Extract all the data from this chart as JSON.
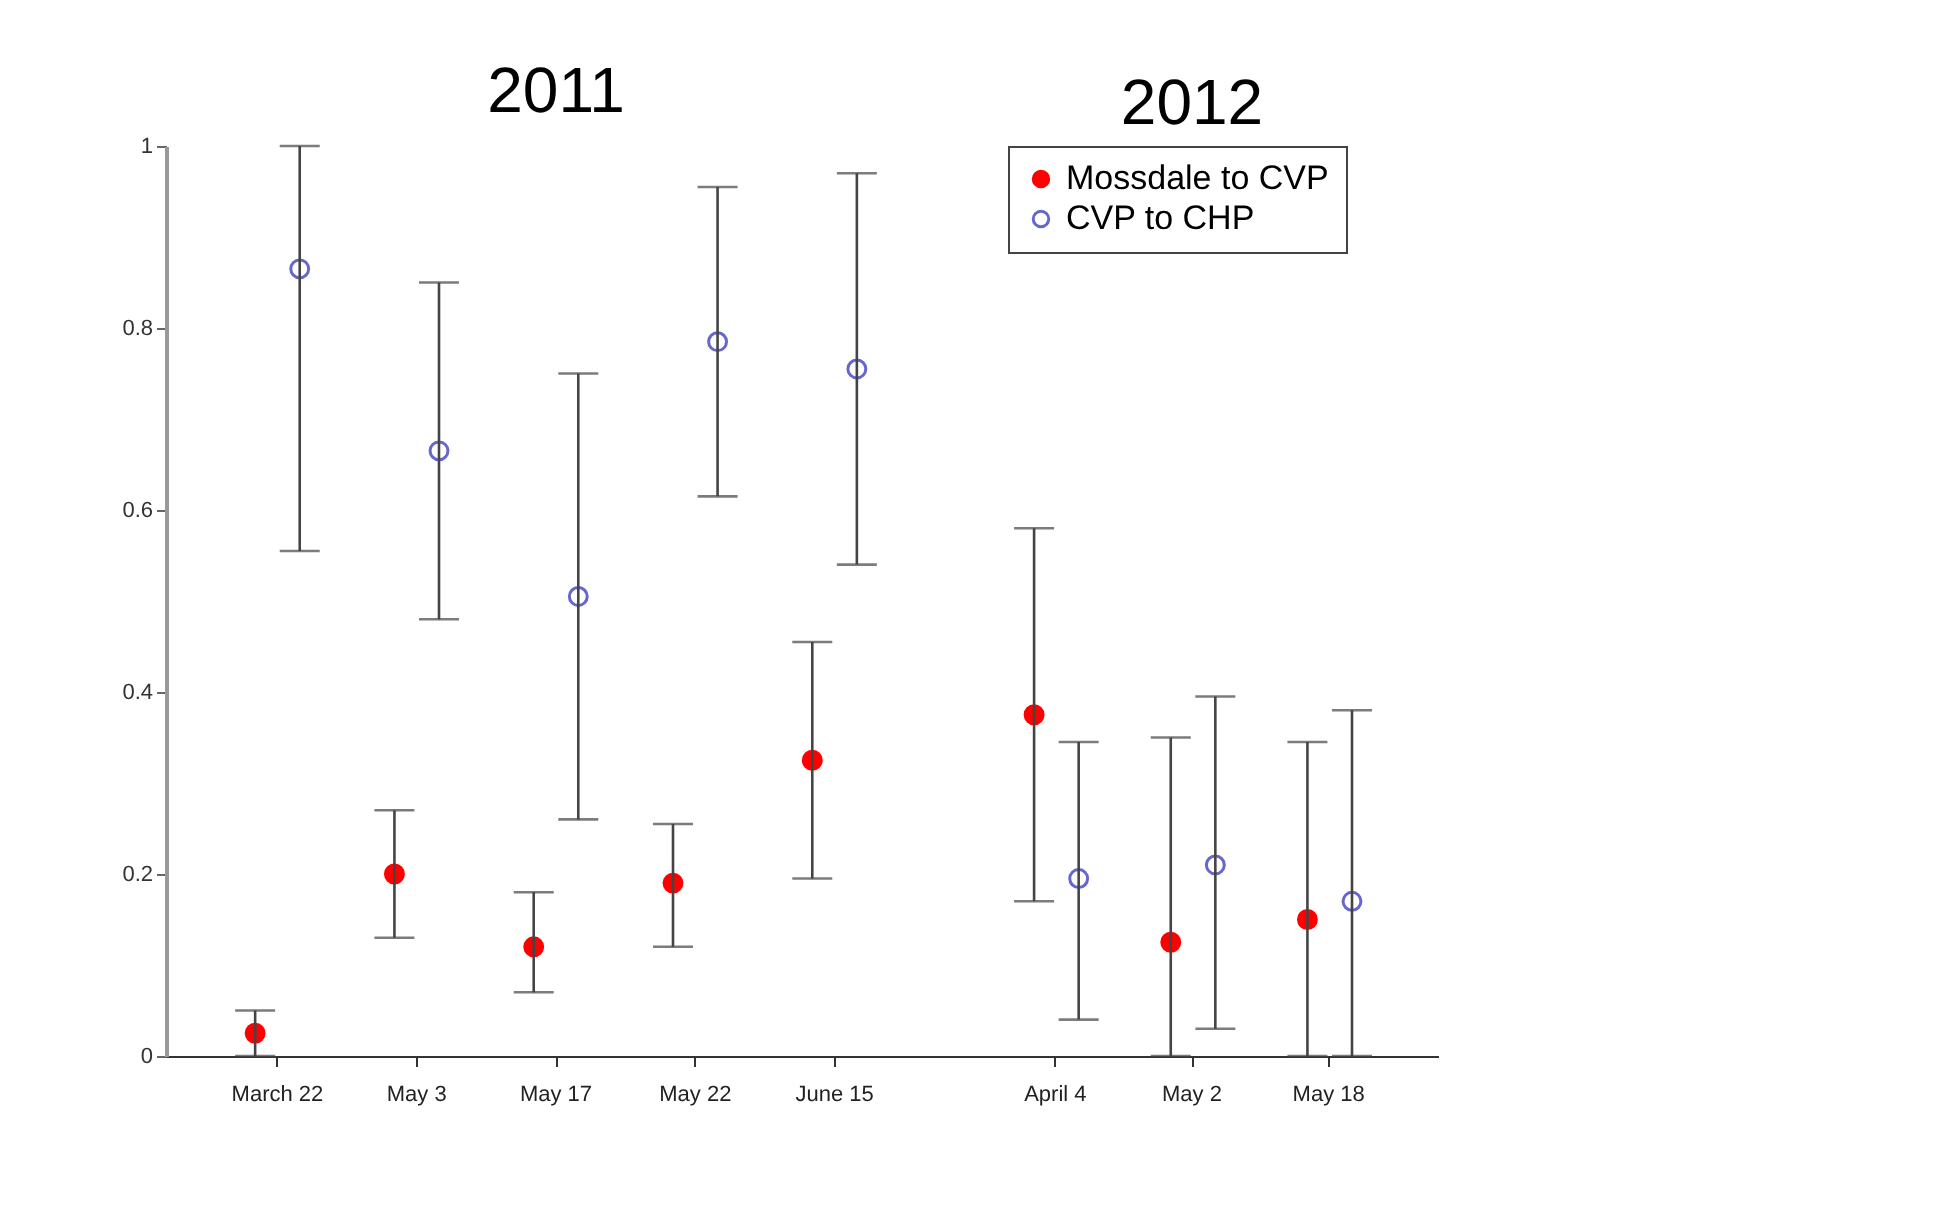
{
  "chart_data": [
    {
      "type": "scatter",
      "title": "2011",
      "categories": [
        "March 22",
        "May 3",
        "May 17",
        "May 22",
        "June 15"
      ],
      "ylim": [
        0,
        1
      ],
      "yticks": [
        0,
        0.2,
        0.4,
        0.6,
        0.8,
        1
      ],
      "marker": "circle",
      "legend": "top right",
      "grid": false,
      "series": [
        {
          "name": "Mossdale to CVP",
          "color": "#ff0000",
          "values": [
            0.025,
            0.2,
            0.12,
            0.19,
            0.325
          ],
          "errors": [
            [
              0,
              0.05
            ],
            [
              0.13,
              0.27
            ],
            [
              0.07,
              0.18
            ],
            [
              0.12,
              0.255
            ],
            [
              0.195,
              0.455
            ]
          ]
        },
        {
          "name": "CVP to CHP",
          "color": "#6666cc",
          "values": [
            0.865,
            0.665,
            0.505,
            0.785,
            0.755
          ],
          "errors": [
            [
              0.555,
              1.0
            ],
            [
              0.48,
              0.85
            ],
            [
              0.26,
              0.75
            ],
            [
              0.615,
              0.955
            ],
            [
              0.54,
              0.97
            ]
          ]
        }
      ]
    },
    {
      "type": "scatter",
      "title": "2012",
      "categories": [
        "April 4",
        "May 2",
        "May 18"
      ],
      "ylim": [
        0,
        1
      ],
      "yticks": [
        0,
        0.2,
        0.4,
        0.6,
        0.8,
        1
      ],
      "tick_labels": "x",
      "marker": "circle",
      "grid": false,
      "series": [
        {
          "color": "#ff0000",
          "values": [
            0.375,
            0.125,
            0.15
          ],
          "errors": [
            [
              0.17,
              0.58
            ],
            [
              0,
              0.35
            ],
            [
              0,
              0.345
            ]
          ]
        },
        {
          "color": "#6666cc",
          "values": [
            0.195,
            0.21,
            0.17
          ],
          "errors": [
            [
              0.04,
              0.345
            ],
            [
              0.03,
              0.395
            ],
            [
              0,
              0.38
            ]
          ]
        }
      ]
    }
  ]
}
